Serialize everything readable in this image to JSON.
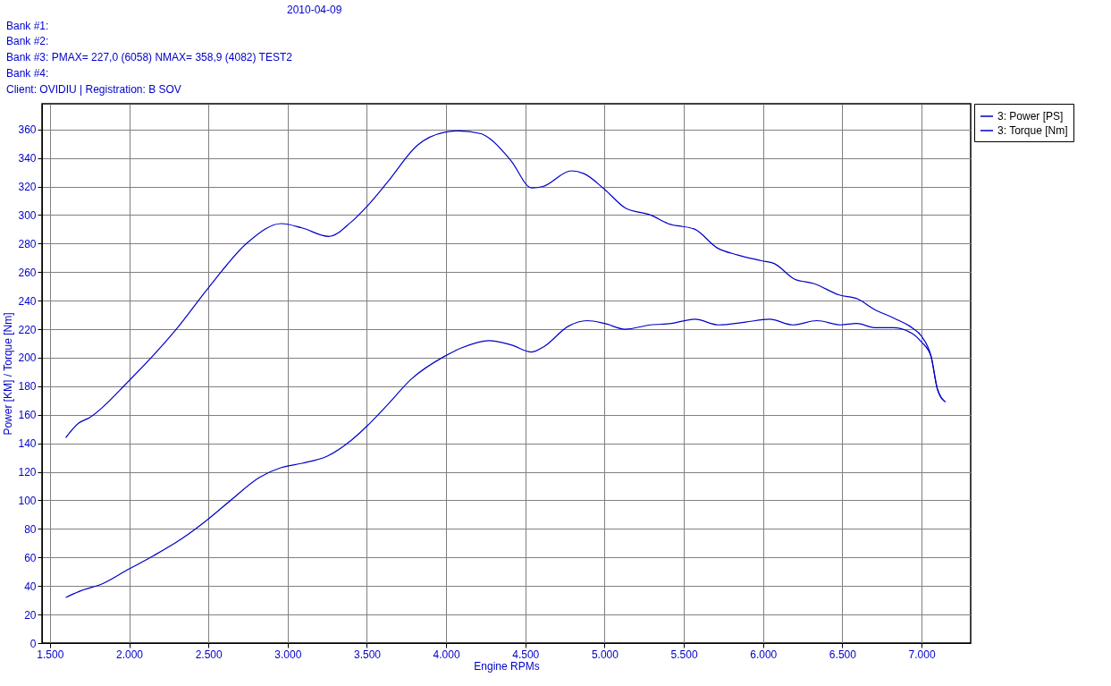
{
  "chart_data": {
    "type": "line",
    "xlabel": "Engine RPMs",
    "ylabel": "Power [KM] / Torque [Nm]",
    "annotations": [
      "2010-04-09",
      "Bank #1:",
      "Bank #2:",
      "Bank #3: PMAX= 227,0 (6058)    NMAX= 358,9 (4082)   TEST2",
      "Bank #4:",
      "Client:  OVIDIU | Registration:  B      SOV"
    ],
    "xlim": [
      1450,
      7310
    ],
    "ylim": [
      0,
      378
    ],
    "xticks": [
      {
        "value": 1500,
        "label": "1.500"
      },
      {
        "value": 2000,
        "label": "2.000"
      },
      {
        "value": 2500,
        "label": "2.500"
      },
      {
        "value": 3000,
        "label": "3.000"
      },
      {
        "value": 3500,
        "label": "3.500"
      },
      {
        "value": 4000,
        "label": "4.000"
      },
      {
        "value": 4500,
        "label": "4.500"
      },
      {
        "value": 5000,
        "label": "5.000"
      },
      {
        "value": 5500,
        "label": "5.500"
      },
      {
        "value": 6000,
        "label": "6.000"
      },
      {
        "value": 6500,
        "label": "6.500"
      },
      {
        "value": 7000,
        "label": "7.000"
      }
    ],
    "yticks": [
      0,
      20,
      40,
      60,
      80,
      100,
      120,
      140,
      160,
      180,
      200,
      220,
      240,
      260,
      280,
      300,
      320,
      340,
      360
    ],
    "grid": true,
    "legend": "top right",
    "marker": "none",
    "line_style": "solid",
    "series": [
      {
        "name": "3: Power [PS]",
        "color": "#0000c8",
        "x": [
          1600,
          1680,
          1840,
          2000,
          2150,
          2330,
          2500,
          2640,
          2820,
          2960,
          3090,
          3250,
          3400,
          3500,
          3630,
          3780,
          3990,
          4100,
          4270,
          4410,
          4540,
          4620,
          4770,
          4890,
          5000,
          5130,
          5290,
          5420,
          5570,
          5720,
          5890,
          6040,
          6190,
          6340,
          6490,
          6590,
          6710,
          6820,
          6940,
          7000,
          7060,
          7100,
          7150
        ],
        "values": [
          32,
          36,
          42,
          52,
          61,
          73,
          87,
          100,
          116,
          123,
          126,
          131,
          142,
          152,
          167,
          185,
          201,
          207,
          212,
          209,
          204,
          208,
          222,
          226,
          224,
          220,
          223,
          224,
          227,
          223,
          225,
          227,
          223,
          226,
          223,
          224,
          221,
          221,
          217,
          211,
          201,
          178,
          169
        ]
      },
      {
        "name": "3: Torque [Nm]",
        "color": "#0000c8",
        "x": [
          1600,
          1680,
          1750,
          2000,
          2290,
          2500,
          2750,
          2960,
          3090,
          3260,
          3400,
          3500,
          3630,
          3820,
          3990,
          4080,
          4220,
          4270,
          4410,
          4540,
          4610,
          4790,
          4870,
          5000,
          5130,
          5290,
          5400,
          5570,
          5710,
          5840,
          5990,
          6070,
          6200,
          6320,
          6480,
          6600,
          6700,
          6820,
          6940,
          7000,
          7060,
          7100,
          7150
        ],
        "values": [
          144,
          154,
          158,
          184,
          219,
          249,
          281,
          294,
          291,
          285,
          295,
          306,
          323,
          349,
          358,
          359,
          357,
          354,
          338,
          319,
          320,
          331,
          329,
          318,
          305,
          300,
          294,
          290,
          277,
          272,
          268,
          266,
          255,
          252,
          244,
          241,
          234,
          228,
          221,
          215,
          201,
          178,
          169
        ]
      }
    ]
  }
}
